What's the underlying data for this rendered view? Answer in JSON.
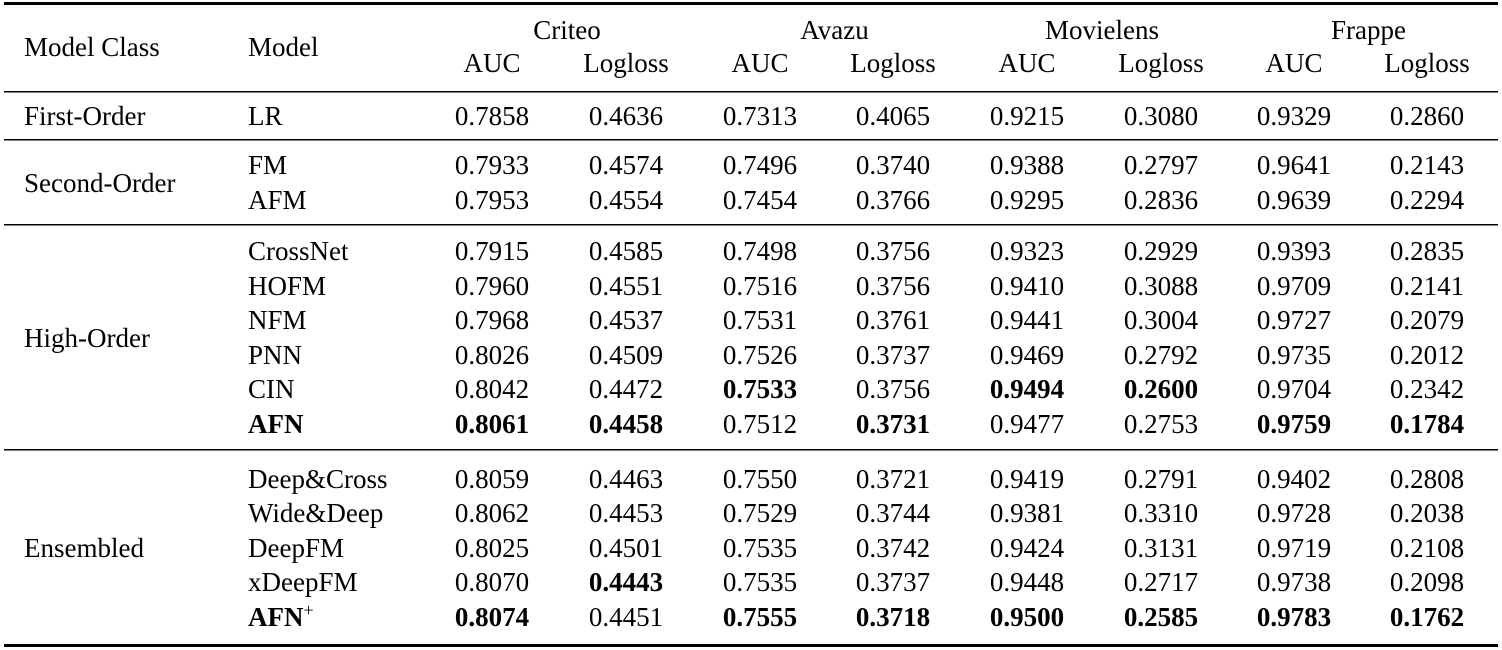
{
  "header": {
    "model_class": "Model Class",
    "model": "Model",
    "datasets": [
      "Criteo",
      "Avazu",
      "Movielens",
      "Frappe"
    ],
    "metrics": [
      "AUC",
      "Logloss"
    ]
  },
  "groups": [
    {
      "class": "First-Order",
      "rows": [
        {
          "model": "LR",
          "values": [
            "0.7858",
            "0.4636",
            "0.7313",
            "0.4065",
            "0.9215",
            "0.3080",
            "0.9329",
            "0.2860"
          ],
          "bold": []
        }
      ]
    },
    {
      "class": "Second-Order",
      "rows": [
        {
          "model": "FM",
          "values": [
            "0.7933",
            "0.4574",
            "0.7496",
            "0.3740",
            "0.9388",
            "0.2797",
            "0.9641",
            "0.2143"
          ],
          "bold": []
        },
        {
          "model": "AFM",
          "values": [
            "0.7953",
            "0.4554",
            "0.7454",
            "0.3766",
            "0.9295",
            "0.2836",
            "0.9639",
            "0.2294"
          ],
          "bold": []
        }
      ]
    },
    {
      "class": "High-Order",
      "rows": [
        {
          "model": "CrossNet",
          "values": [
            "0.7915",
            "0.4585",
            "0.7498",
            "0.3756",
            "0.9323",
            "0.2929",
            "0.9393",
            "0.2835"
          ],
          "bold": []
        },
        {
          "model": "HOFM",
          "values": [
            "0.7960",
            "0.4551",
            "0.7516",
            "0.3756",
            "0.9410",
            "0.3088",
            "0.9709",
            "0.2141"
          ],
          "bold": []
        },
        {
          "model": "NFM",
          "values": [
            "0.7968",
            "0.4537",
            "0.7531",
            "0.3761",
            "0.9441",
            "0.3004",
            "0.9727",
            "0.2079"
          ],
          "bold": []
        },
        {
          "model": "PNN",
          "values": [
            "0.8026",
            "0.4509",
            "0.7526",
            "0.3737",
            "0.9469",
            "0.2792",
            "0.9735",
            "0.2012"
          ],
          "bold": []
        },
        {
          "model": "CIN",
          "values": [
            "0.8042",
            "0.4472",
            "0.7533",
            "0.3756",
            "0.9494",
            "0.2600",
            "0.9704",
            "0.2342"
          ],
          "bold": [
            2,
            4,
            5
          ]
        },
        {
          "model": "AFN",
          "model_bold": true,
          "values": [
            "0.8061",
            "0.4458",
            "0.7512",
            "0.3731",
            "0.9477",
            "0.2753",
            "0.9759",
            "0.1784"
          ],
          "bold": [
            0,
            1,
            3,
            6,
            7
          ]
        }
      ]
    },
    {
      "class": "Ensembled",
      "rows": [
        {
          "model": "Deep&Cross",
          "values": [
            "0.8059",
            "0.4463",
            "0.7550",
            "0.3721",
            "0.9419",
            "0.2791",
            "0.9402",
            "0.2808"
          ],
          "bold": []
        },
        {
          "model": "Wide&Deep",
          "values": [
            "0.8062",
            "0.4453",
            "0.7529",
            "0.3744",
            "0.9381",
            "0.3310",
            "0.9728",
            "0.2038"
          ],
          "bold": []
        },
        {
          "model": "DeepFM",
          "values": [
            "0.8025",
            "0.4501",
            "0.7535",
            "0.3742",
            "0.9424",
            "0.3131",
            "0.9719",
            "0.2108"
          ],
          "bold": []
        },
        {
          "model": "xDeepFM",
          "values": [
            "0.8070",
            "0.4443",
            "0.7535",
            "0.3737",
            "0.9448",
            "0.2717",
            "0.9738",
            "0.2098"
          ],
          "bold": [
            1
          ]
        },
        {
          "model": "AFN",
          "model_sup": "+",
          "model_bold": true,
          "values": [
            "0.8074",
            "0.4451",
            "0.7555",
            "0.3718",
            "0.9500",
            "0.2585",
            "0.9783",
            "0.1762"
          ],
          "bold": [
            0,
            2,
            3,
            4,
            5,
            6,
            7
          ]
        }
      ]
    }
  ]
}
